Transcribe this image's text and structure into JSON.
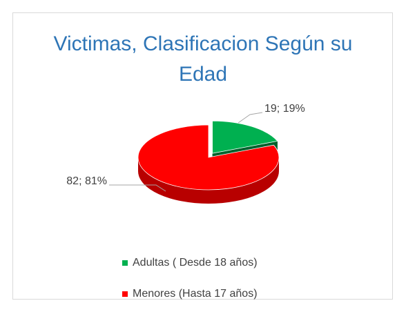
{
  "chart_data": {
    "type": "pie",
    "title": "Victimas, Clasificacion Según su Edad",
    "categories": [
      "Adultas ( Desde 18 años)",
      "Menores (Hasta 17 años)"
    ],
    "values": [
      19,
      82
    ],
    "value_labels": [
      "19; 19%",
      "82; 81%"
    ],
    "colors": [
      "#00b050",
      "#ff0000"
    ],
    "legend": "bottom"
  }
}
